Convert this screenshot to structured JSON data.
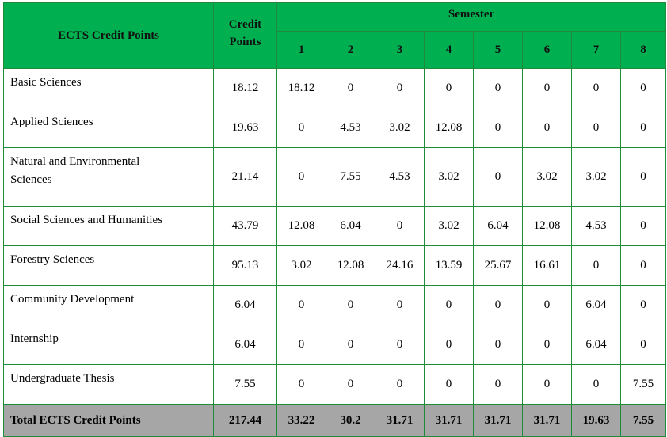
{
  "header": {
    "corner": "ECTS Credit Points",
    "credit_line1": "Credit",
    "credit_line2": "Points",
    "semester": "Semester",
    "semesters": [
      "1",
      "2",
      "3",
      "4",
      "5",
      "6",
      "7",
      "8"
    ]
  },
  "rows": [
    {
      "label": "Basic Sciences",
      "credit": "18.12",
      "values": [
        "18.12",
        "0",
        "0",
        "0",
        "0",
        "0",
        "0",
        "0"
      ]
    },
    {
      "label": "Applied Sciences",
      "credit": "19.63",
      "values": [
        "0",
        "4.53",
        "3.02",
        "12.08",
        "0",
        "0",
        "0",
        "0"
      ]
    },
    {
      "label_line1": "Natural and Environmental",
      "label_line2": "Sciences",
      "credit": "21.14",
      "values": [
        "0",
        "7.55",
        "4.53",
        "3.02",
        "0",
        "3.02",
        "3.02",
        "0"
      ]
    },
    {
      "label": "Social Sciences and Humanities",
      "credit": "43.79",
      "values": [
        "12.08",
        "6.04",
        "0",
        "3.02",
        "6.04",
        "12.08",
        "4.53",
        "0"
      ]
    },
    {
      "label": "Forestry Sciences",
      "credit": "95.13",
      "values": [
        "3.02",
        "12.08",
        "24.16",
        "13.59",
        "25.67",
        "16.61",
        "0",
        "0"
      ]
    },
    {
      "label": "Community Development",
      "credit": "6.04",
      "values": [
        "0",
        "0",
        "0",
        "0",
        "0",
        "0",
        "6.04",
        "0"
      ]
    },
    {
      "label": "Internship",
      "credit": "6.04",
      "values": [
        "0",
        "0",
        "0",
        "0",
        "0",
        "0",
        "6.04",
        "0"
      ]
    },
    {
      "label": "Undergraduate Thesis",
      "credit": "7.55",
      "values": [
        "0",
        "0",
        "0",
        "0",
        "0",
        "0",
        "0",
        "7.55"
      ]
    }
  ],
  "total": {
    "label": "Total ECTS Credit Points",
    "credit": "217.44",
    "values": [
      "33.22",
      "30.2",
      "31.71",
      "31.71",
      "31.71",
      "31.71",
      "19.63",
      "7.55"
    ]
  },
  "colors": {
    "header_bg": "#00b050",
    "total_bg": "#a6a6a6",
    "border": "#1f8a3a"
  }
}
